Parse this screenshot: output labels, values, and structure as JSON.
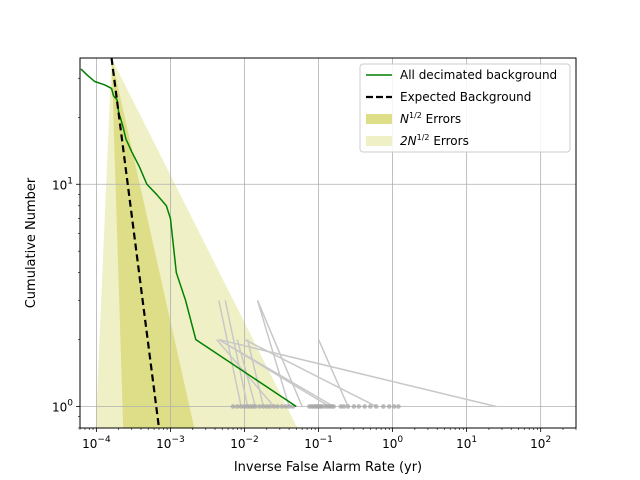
{
  "chart_data": {
    "type": "line",
    "xscale": "log",
    "yscale": "log",
    "xlim": [
      6e-05,
      300
    ],
    "ylim": [
      0.8,
      37
    ],
    "grid": true,
    "legend_position": "top-right",
    "xlabel": "Inverse False Alarm Rate (yr)",
    "ylabel": "Cumulative Number",
    "x_ticks": [
      {
        "value": 0.0001,
        "base": "10",
        "exp": "−4"
      },
      {
        "value": 0.001,
        "base": "10",
        "exp": "−3"
      },
      {
        "value": 0.01,
        "base": "10",
        "exp": "−2"
      },
      {
        "value": 0.1,
        "base": "10",
        "exp": "−1"
      },
      {
        "value": 1,
        "base": "10",
        "exp": "0"
      },
      {
        "value": 10,
        "base": "10",
        "exp": "1"
      },
      {
        "value": 100,
        "base": "10",
        "exp": "2"
      }
    ],
    "y_ticks": [
      {
        "value": 1,
        "base": "10",
        "exp": "0"
      },
      {
        "value": 10,
        "base": "10",
        "exp": "1"
      }
    ],
    "expected_background": {
      "name": "Expected Background",
      "color": "#000000",
      "x": [
        0.00016,
        0.0007
      ],
      "y": [
        37,
        0.8
      ],
      "band_1sigma": {
        "name": "N^{1/2} Errors",
        "color": "#dede88",
        "upper_x": [
          0.00016,
          0.0021
        ],
        "lower_x": [
          0.00016,
          0.00023
        ],
        "y": [
          37,
          0.8
        ]
      },
      "band_2sigma": {
        "name": "2N^{1/2} Errors",
        "color": "#f0f0c6",
        "upper_x": [
          0.00016,
          0.052
        ],
        "lower_x": [
          0.00016,
          9.8e-05
        ],
        "y": [
          37,
          0.8
        ]
      }
    },
    "series": [
      {
        "name": "All decimated background",
        "color": "#008000",
        "x": [
          6.2e-05,
          7.5e-05,
          9.5e-05,
          0.00013,
          0.00016,
          0.00017,
          0.00019,
          0.0002,
          0.00021,
          0.00023,
          0.00025,
          0.0003,
          0.00038,
          0.00048,
          0.00065,
          0.00088,
          0.001,
          0.0012,
          0.0016,
          0.0022,
          0.05
        ],
        "y": [
          33,
          31,
          29,
          28,
          27,
          25,
          24,
          21,
          20,
          18,
          16,
          14,
          12,
          10,
          9,
          8,
          7,
          4,
          3,
          2,
          1
        ]
      }
    ],
    "grey_traces": [
      {
        "x": [
          0.009,
          0.0045
        ],
        "y": [
          1,
          3
        ]
      },
      {
        "x": [
          0.011,
          0.0055
        ],
        "y": [
          1,
          3
        ]
      },
      {
        "x": [
          0.014,
          0.008
        ],
        "y": [
          1,
          2
        ]
      },
      {
        "x": [
          0.018,
          0.011
        ],
        "y": [
          1,
          2
        ]
      },
      {
        "x": [
          0.025,
          0.0042
        ],
        "y": [
          1,
          2
        ]
      },
      {
        "x": [
          0.04,
          0.015
        ],
        "y": [
          1,
          3
        ]
      },
      {
        "x": [
          0.06,
          0.015
        ],
        "y": [
          1,
          3
        ]
      },
      {
        "x": [
          0.14,
          0.0045
        ],
        "y": [
          1,
          2
        ]
      },
      {
        "x": [
          0.16,
          0.0045
        ],
        "y": [
          1,
          2
        ]
      },
      {
        "x": [
          0.25,
          0.1
        ],
        "y": [
          1,
          2
        ]
      },
      {
        "x": [
          0.6,
          0.01
        ],
        "y": [
          1,
          2
        ]
      },
      {
        "x": [
          25,
          0.0045
        ],
        "y": [
          1,
          2
        ]
      }
    ],
    "grey_points": {
      "color": "#a6a6a6",
      "x": [
        0.007,
        0.008,
        0.009,
        0.01,
        0.011,
        0.012,
        0.013,
        0.014,
        0.016,
        0.018,
        0.02,
        0.022,
        0.025,
        0.028,
        0.032,
        0.036,
        0.04,
        0.045,
        0.075,
        0.08,
        0.085,
        0.09,
        0.095,
        0.1,
        0.105,
        0.11,
        0.12,
        0.13,
        0.14,
        0.15,
        0.16,
        0.2,
        0.22,
        0.25,
        0.3,
        0.35,
        0.42,
        0.5,
        0.6,
        0.75,
        0.9,
        1.05,
        1.2
      ],
      "y": 1
    },
    "legend": [
      {
        "kind": "line",
        "color": "#008000",
        "dash": false,
        "label": "All decimated background"
      },
      {
        "kind": "line",
        "color": "#000000",
        "dash": true,
        "label": "Expected Background"
      },
      {
        "kind": "patch",
        "color": "#dede88",
        "label_main": "N",
        "label_sup": "1/2",
        "label_rest": " Errors"
      },
      {
        "kind": "patch",
        "color": "#f0f0c6",
        "label_main": "2N",
        "label_sup": "1/2",
        "label_rest": " Errors"
      }
    ]
  }
}
